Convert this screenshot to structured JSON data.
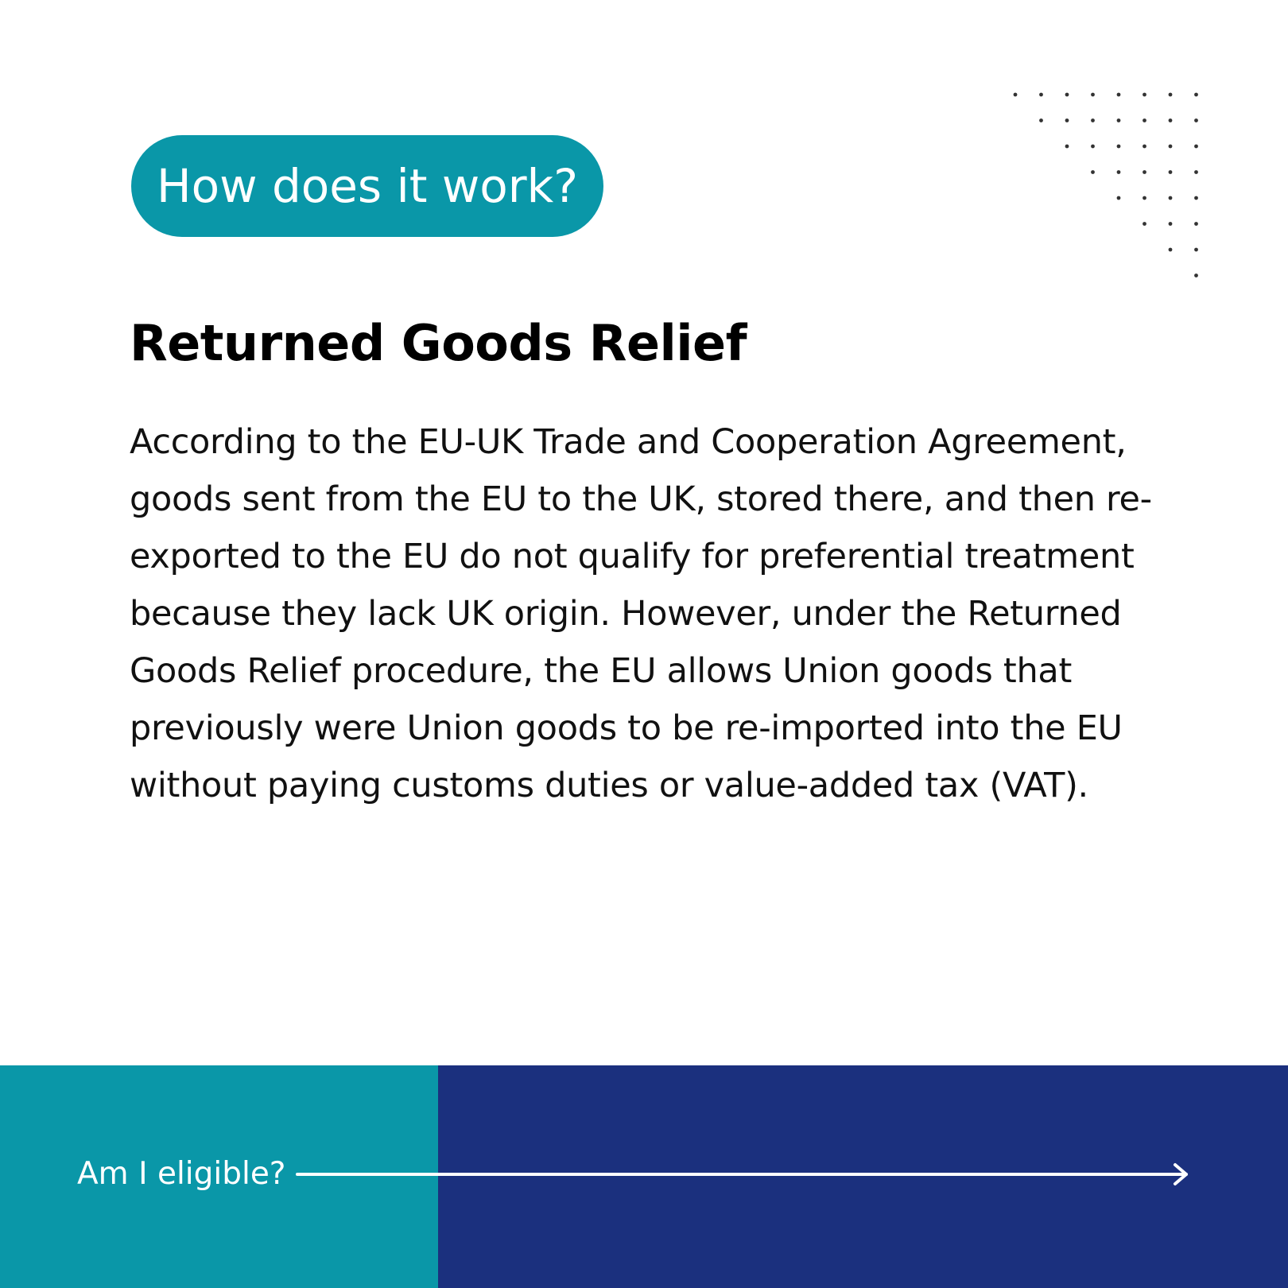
{
  "header": {
    "pill_label": "How does it work?"
  },
  "content": {
    "title": "Returned Goods Relief",
    "body": "According to the EU-UK Trade and Cooperation Agreement, goods sent from the EU to the UK, stored there, and then re-exported to the EU do not qualify for preferential treatment because they lack UK origin. However, under the Returned Goods Relief procedure, the EU allows Union goods that previously were Union goods to be re-imported into the EU without paying customs duties or value-added tax (VAT)."
  },
  "footer": {
    "cta_label": "Am I eligible?",
    "arrow_icon": "arrow-right-icon"
  },
  "colors": {
    "teal": "#0A97A8",
    "navy": "#1B307E",
    "text": "#111111",
    "dots": "#333333"
  }
}
